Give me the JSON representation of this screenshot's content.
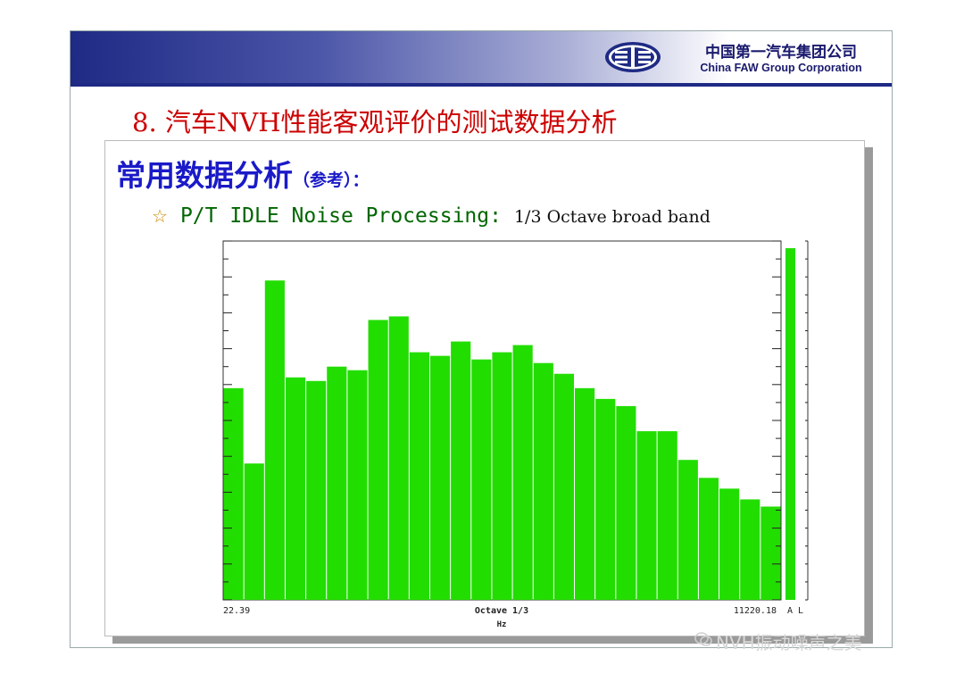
{
  "header": {
    "company_cn": "中国第一汽车集团公司",
    "company_en": "China FAW Group Corporation",
    "logo_icon": "faw-logo-icon",
    "brand_color": "#1e2a84"
  },
  "slide": {
    "title": "8. 汽车NVH性能客观评价的测试数据分析",
    "heading": "常用数据分析",
    "heading_note": "（参考）：",
    "bullet_icon": "star-icon",
    "bullet_main": "P/T IDLE Noise Processing:",
    "bullet_sub": "1/3 Octave broad band"
  },
  "chart_data": {
    "type": "bar",
    "bar_color": "#22dd00",
    "values": [
      59,
      38,
      89,
      62,
      61,
      65,
      64,
      78,
      79,
      69,
      68,
      72,
      67,
      69,
      71,
      66,
      63,
      59,
      56,
      54,
      47,
      47,
      39,
      34,
      31,
      28,
      26
    ],
    "overall": {
      "label": "A L",
      "value": 98
    },
    "x_start_label": "22.39",
    "x_end_label": "11220.18",
    "xlabel": "Octave 1/3",
    "xunit": "Hz",
    "ylim": [
      0,
      100
    ]
  },
  "watermark": {
    "text": "NVH振动噪声之美",
    "icon": "wechat-icon"
  }
}
